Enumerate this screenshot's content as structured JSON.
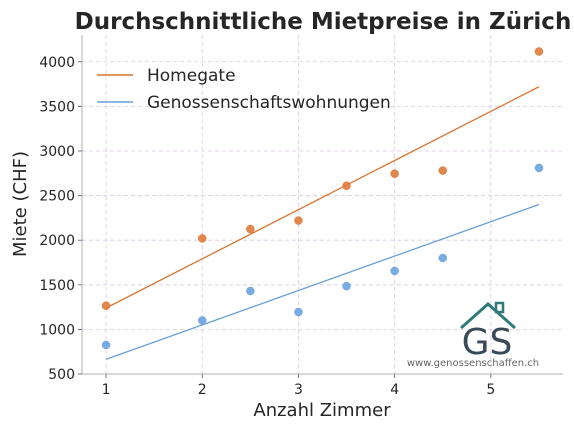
{
  "chart_data": {
    "type": "scatter",
    "title": "Durchschnittliche Mietpreise in Zürich",
    "xlabel": "Anzahl Zimmer",
    "ylabel": "Miete (CHF)",
    "xlim": [
      0.75,
      5.75
    ],
    "ylim": [
      500,
      4300
    ],
    "xticks": [
      1,
      2,
      3,
      4,
      5
    ],
    "yticks": [
      500,
      1000,
      1500,
      2000,
      2500,
      3000,
      3500,
      4000
    ],
    "grid": true,
    "legend_position": "top-left",
    "series": [
      {
        "name": "Homegate",
        "color": "#e07b39",
        "line_color": "#d9742e",
        "x": [
          1,
          2,
          2.5,
          3,
          3.5,
          4,
          4.5,
          5.5
        ],
        "y": [
          1265,
          2020,
          2125,
          2220,
          2610,
          2745,
          2780,
          4115
        ],
        "trendline": {
          "x": [
            1,
            5.5
          ],
          "y": [
            1240,
            3720
          ]
        }
      },
      {
        "name": "Genossenschaftswohnungen",
        "color": "#6aa3e0",
        "line_color": "#6a9ed8",
        "x": [
          1,
          2,
          2.5,
          3,
          3.5,
          4,
          4.5,
          5.5
        ],
        "y": [
          825,
          1100,
          1430,
          1195,
          1485,
          1655,
          1800,
          2810
        ],
        "trendline": {
          "x": [
            1,
            5.5
          ],
          "y": [
            665,
            2400
          ]
        }
      }
    ]
  },
  "watermark": {
    "logo_text": "GS",
    "url": "www.genossenschaffen.ch",
    "logo_color": "#3a4a57",
    "roof_color": "#2e7b7a"
  }
}
